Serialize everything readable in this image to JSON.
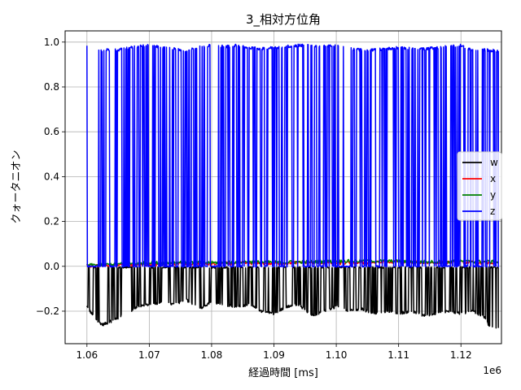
{
  "chart_data": {
    "type": "line",
    "title": "3_相対方位角",
    "xlabel": "経過時間 [ms]",
    "ylabel": "クォータニオン",
    "x_offset_label": "1e6",
    "xlim": [
      1.0565,
      1.1265
    ],
    "ylim": [
      -0.345,
      1.05
    ],
    "x_ticks": [
      1.06,
      1.07,
      1.08,
      1.09,
      1.1,
      1.11,
      1.12
    ],
    "x_tick_labels": [
      "1.06",
      "1.07",
      "1.08",
      "1.09",
      "1.10",
      "1.11",
      "1.12"
    ],
    "y_ticks": [
      -0.2,
      0.0,
      0.2,
      0.4,
      0.6,
      0.8,
      1.0
    ],
    "y_tick_labels": [
      "−0.2",
      "0.0",
      "0.2",
      "0.4",
      "0.6",
      "0.8",
      "1.0"
    ],
    "grid": true,
    "legend_position": "right",
    "x_range": [
      1.06,
      1.126
    ],
    "series": [
      {
        "name": "w",
        "color": "#000000",
        "baseline": -0.005,
        "envelope": [
          [
            1.06,
            -0.18
          ],
          [
            1.0615,
            -0.24
          ],
          [
            1.0625,
            -0.26
          ],
          [
            1.0635,
            -0.25
          ],
          [
            1.065,
            -0.23
          ],
          [
            1.066,
            -0.21
          ],
          [
            1.067,
            -0.2
          ],
          [
            1.068,
            -0.18
          ],
          [
            1.07,
            -0.17
          ],
          [
            1.072,
            -0.16
          ],
          [
            1.074,
            -0.17
          ],
          [
            1.076,
            -0.15
          ],
          [
            1.078,
            -0.19
          ],
          [
            1.08,
            -0.16
          ],
          [
            1.082,
            -0.17
          ],
          [
            1.084,
            -0.18
          ],
          [
            1.086,
            -0.17
          ],
          [
            1.088,
            -0.2
          ],
          [
            1.09,
            -0.21
          ],
          [
            1.092,
            -0.18
          ],
          [
            1.094,
            -0.17
          ],
          [
            1.096,
            -0.22
          ],
          [
            1.098,
            -0.2
          ],
          [
            1.1,
            -0.18
          ],
          [
            1.102,
            -0.2
          ],
          [
            1.104,
            -0.19
          ],
          [
            1.106,
            -0.21
          ],
          [
            1.108,
            -0.2
          ],
          [
            1.11,
            -0.21
          ],
          [
            1.112,
            -0.2
          ],
          [
            1.114,
            -0.22
          ],
          [
            1.116,
            -0.21
          ],
          [
            1.118,
            -0.2
          ],
          [
            1.12,
            -0.21
          ],
          [
            1.122,
            -0.2
          ],
          [
            1.124,
            -0.23
          ],
          [
            1.1245,
            -0.27
          ],
          [
            1.126,
            -0.275
          ]
        ]
      },
      {
        "name": "x",
        "color": "#ff0000",
        "points": [
          [
            1.06,
            0.003
          ],
          [
            1.065,
            0.006
          ],
          [
            1.07,
            0.008
          ],
          [
            1.075,
            0.012
          ],
          [
            1.08,
            0.01
          ],
          [
            1.085,
            0.015
          ],
          [
            1.09,
            0.012
          ],
          [
            1.095,
            0.018
          ],
          [
            1.1,
            0.014
          ],
          [
            1.105,
            0.016
          ],
          [
            1.11,
            0.02
          ],
          [
            1.115,
            0.016
          ],
          [
            1.12,
            0.018
          ],
          [
            1.126,
            0.015
          ]
        ]
      },
      {
        "name": "y",
        "color": "#008000",
        "points": [
          [
            1.06,
            0.005
          ],
          [
            1.065,
            0.01
          ],
          [
            1.07,
            0.015
          ],
          [
            1.075,
            0.018
          ],
          [
            1.08,
            0.016
          ],
          [
            1.085,
            0.02
          ],
          [
            1.09,
            0.018
          ],
          [
            1.095,
            0.02
          ],
          [
            1.1,
            0.022
          ],
          [
            1.105,
            0.025
          ],
          [
            1.11,
            0.022
          ],
          [
            1.115,
            0.02
          ],
          [
            1.12,
            0.022
          ],
          [
            1.126,
            0.02
          ]
        ]
      },
      {
        "name": "z",
        "color": "#0000ff",
        "baseline": 0.0,
        "envelope": [
          [
            1.06,
            0.98
          ],
          [
            1.061,
            0.975
          ],
          [
            1.062,
            0.96
          ],
          [
            1.063,
            0.965
          ],
          [
            1.065,
            0.965
          ],
          [
            1.066,
            0.97
          ],
          [
            1.068,
            0.98
          ],
          [
            1.07,
            0.985
          ],
          [
            1.072,
            0.975
          ],
          [
            1.074,
            0.97
          ],
          [
            1.076,
            0.96
          ],
          [
            1.078,
            0.98
          ],
          [
            1.08,
            0.985
          ],
          [
            1.082,
            0.98
          ],
          [
            1.084,
            0.985
          ],
          [
            1.086,
            0.975
          ],
          [
            1.088,
            0.97
          ],
          [
            1.09,
            0.975
          ],
          [
            1.092,
            0.98
          ],
          [
            1.094,
            0.985
          ],
          [
            1.096,
            0.985
          ],
          [
            1.098,
            0.98
          ],
          [
            1.1,
            0.985
          ],
          [
            1.102,
            0.97
          ],
          [
            1.104,
            0.965
          ],
          [
            1.106,
            0.965
          ],
          [
            1.108,
            0.97
          ],
          [
            1.11,
            0.975
          ],
          [
            1.112,
            0.97
          ],
          [
            1.114,
            0.97
          ],
          [
            1.116,
            0.975
          ],
          [
            1.118,
            0.98
          ],
          [
            1.12,
            0.985
          ],
          [
            1.122,
            0.96
          ],
          [
            1.124,
            0.965
          ],
          [
            1.126,
            0.96
          ]
        ]
      }
    ]
  }
}
